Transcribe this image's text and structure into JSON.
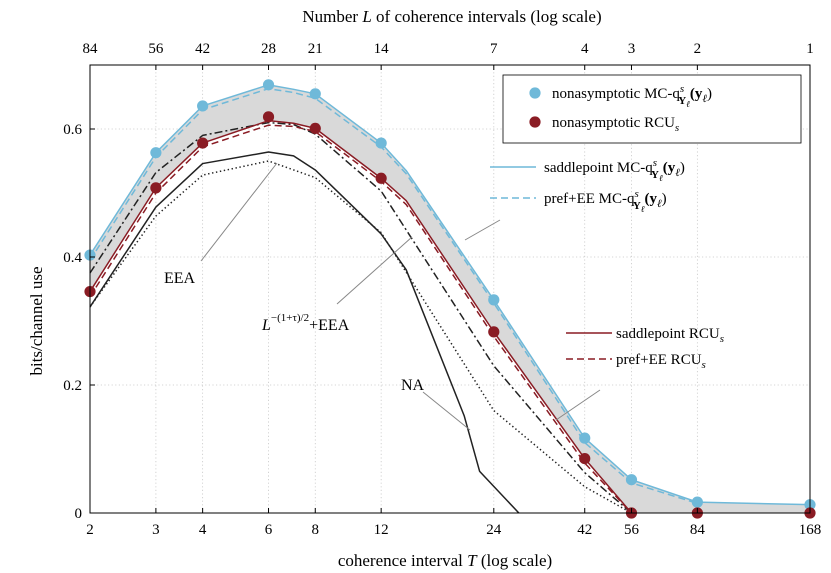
{
  "chart_data": {
    "type": "line",
    "xlabel_prefix": "coherence interval ",
    "xlabel_var": "T",
    "xlabel_suffix": " (log scale)",
    "top_xlabel_prefix": "Number ",
    "top_xlabel_var": "L",
    "top_xlabel_suffix": " of coherence intervals (log scale)",
    "ylabel": "bits/channel use",
    "x_scale": "log",
    "xlim": [
      2,
      168
    ],
    "ylim": [
      0,
      0.7
    ],
    "x_ticks": [
      2,
      3,
      4,
      6,
      8,
      12,
      24,
      42,
      56,
      84,
      168
    ],
    "top_ticks": [
      {
        "T": 2,
        "label": "84"
      },
      {
        "T": 3,
        "label": "56"
      },
      {
        "T": 4,
        "label": "42"
      },
      {
        "T": 6,
        "label": "28"
      },
      {
        "T": 8,
        "label": "21"
      },
      {
        "T": 12,
        "label": "14"
      },
      {
        "T": 24,
        "label": "7"
      },
      {
        "T": 42,
        "label": "4"
      },
      {
        "T": 56,
        "label": "3"
      },
      {
        "T": 84,
        "label": "2"
      },
      {
        "T": 168,
        "label": "1"
      }
    ],
    "y_ticks": [
      0,
      0.2,
      0.4,
      0.6
    ],
    "grid": true,
    "legend_position": "top-right",
    "colors": {
      "blue": "#6fb9d9",
      "red": "#8a1c24",
      "black": "#222222",
      "fill": "#d9d9d9"
    },
    "series": [
      {
        "key": "mc_markers",
        "name": "nonasymptotic MC-q",
        "style": "markers",
        "color": "#6fb9d9",
        "x": [
          2,
          3,
          4,
          6,
          8,
          12,
          24,
          42,
          56,
          84,
          168
        ],
        "y": [
          0.403,
          0.563,
          0.636,
          0.669,
          0.655,
          0.578,
          0.333,
          0.117,
          0.052,
          0.017,
          0.013
        ]
      },
      {
        "key": "rcu_markers",
        "name": "nonasymptotic RCU",
        "style": "markers",
        "color": "#8a1c24",
        "x": [
          2,
          3,
          4,
          6,
          8,
          12,
          24,
          42,
          56,
          84,
          168
        ],
        "y": [
          0.346,
          0.508,
          0.578,
          0.619,
          0.601,
          0.523,
          0.283,
          0.085,
          0.0,
          0.0,
          0.0
        ]
      },
      {
        "key": "saddle_mc",
        "name": "saddlepoint MC-q",
        "style": "solid",
        "color": "#6fb9d9",
        "x": [
          2,
          3,
          4,
          6,
          7,
          8,
          12,
          14,
          24,
          42,
          56,
          84,
          168
        ],
        "y": [
          0.403,
          0.563,
          0.636,
          0.669,
          0.662,
          0.655,
          0.578,
          0.535,
          0.333,
          0.117,
          0.052,
          0.017,
          0.013
        ]
      },
      {
        "key": "pref_mc",
        "name": "pref+EE MC-q",
        "style": "dashed",
        "color": "#6fb9d9",
        "x": [
          2,
          3,
          4,
          6,
          7,
          8,
          12,
          14,
          24,
          42,
          56,
          84
        ],
        "y": [
          0.395,
          0.556,
          0.63,
          0.663,
          0.657,
          0.648,
          0.572,
          0.53,
          0.328,
          0.11,
          0.047,
          0.015
        ]
      },
      {
        "key": "saddle_rcu",
        "name": "saddlepoint RCU",
        "style": "solid",
        "color": "#8a1c24",
        "x": [
          2,
          3,
          4,
          6,
          7,
          8,
          12,
          14,
          24,
          42,
          56
        ],
        "y": [
          0.346,
          0.508,
          0.578,
          0.613,
          0.609,
          0.601,
          0.523,
          0.488,
          0.283,
          0.085,
          0.0
        ]
      },
      {
        "key": "pref_rcu",
        "name": "pref+EE RCU",
        "style": "dashed",
        "color": "#8a1c24",
        "x": [
          2,
          3,
          4,
          6,
          7,
          8,
          12,
          14,
          24,
          42,
          56
        ],
        "y": [
          0.338,
          0.5,
          0.572,
          0.606,
          0.604,
          0.596,
          0.518,
          0.482,
          0.276,
          0.078,
          0.0
        ]
      },
      {
        "key": "lt_eea",
        "name": "",
        "style": "dashdot",
        "color": "#222222",
        "x": [
          2,
          3,
          4,
          6,
          7,
          8,
          12,
          24,
          42,
          56
        ],
        "y": [
          0.375,
          0.532,
          0.59,
          0.61,
          0.607,
          0.592,
          0.503,
          0.23,
          0.063,
          0.0
        ]
      },
      {
        "key": "eea",
        "name": "",
        "style": "dotted",
        "color": "#222222",
        "x": [
          2,
          3,
          4,
          6,
          8,
          12,
          24,
          42,
          56
        ],
        "y": [
          0.322,
          0.464,
          0.528,
          0.55,
          0.524,
          0.438,
          0.16,
          0.041,
          0.0
        ]
      },
      {
        "key": "na",
        "name": "",
        "style": "solid",
        "color": "#222222",
        "x": [
          2,
          3,
          4,
          6,
          7,
          8,
          12,
          14,
          20,
          22,
          28
        ],
        "y": [
          0.322,
          0.478,
          0.546,
          0.564,
          0.558,
          0.536,
          0.436,
          0.38,
          0.152,
          0.065,
          0.0
        ]
      }
    ],
    "legend": [
      {
        "series": "mc_markers",
        "text": "nonasymptotic MC-q",
        "sup": "s",
        "sub": "Y",
        "subsub": "ℓ",
        "tail": "(y",
        "tailsub": "ℓ",
        "close": ")"
      },
      {
        "series": "rcu_markers",
        "text": "nonasymptotic RCU",
        "sub": "s"
      },
      {
        "series": "saddle_mc",
        "text": "saddlepoint MC-q",
        "sup": "s",
        "sub": "Y",
        "subsub": "ℓ",
        "tail": "(y",
        "tailsub": "ℓ",
        "close": ")"
      },
      {
        "series": "pref_mc",
        "text": "pref+EE MC-q",
        "sup": "s",
        "sub": "Y",
        "subsub": "ℓ",
        "tail": "(y",
        "tailsub": "ℓ",
        "close": ")"
      },
      {
        "series": "saddle_rcu",
        "text": "saddlepoint RCU",
        "sub": "s"
      },
      {
        "series": "pref_rcu",
        "text": "pref+EE RCU",
        "sub": "s"
      }
    ],
    "annotations": [
      {
        "key": "eea_label",
        "text": "EEA"
      },
      {
        "key": "lt_label",
        "text": "L",
        "exp": "−(1+τ)/2",
        "suffix": "+EEA"
      },
      {
        "key": "na_label",
        "text": "NA"
      }
    ]
  }
}
